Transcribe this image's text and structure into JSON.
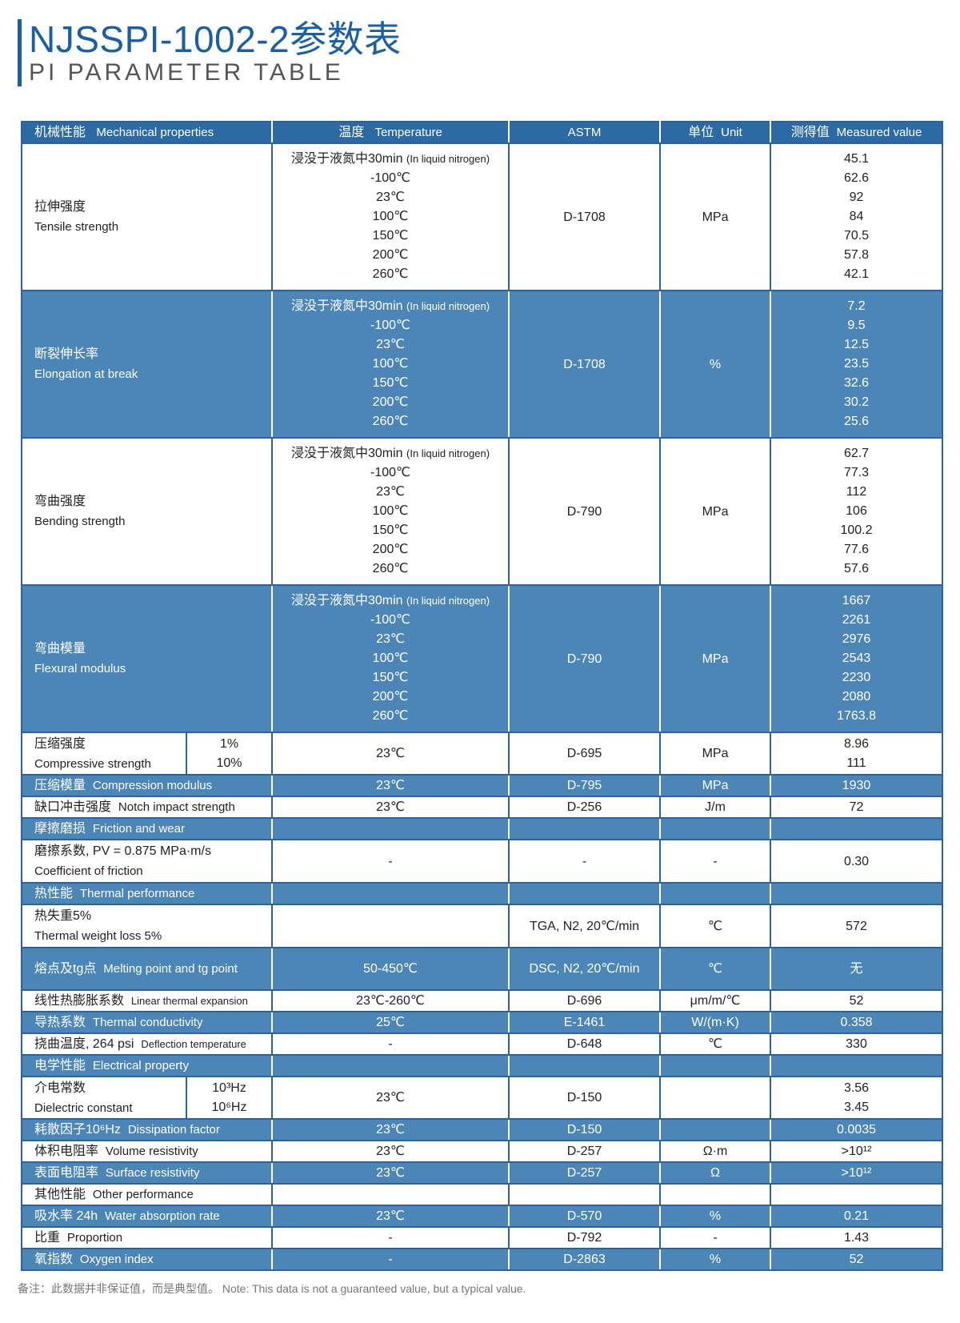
{
  "header": {
    "title": "NJSSPI-1002-2参数表",
    "subtitle": "PI PARAMETER TABLE"
  },
  "columns": [
    {
      "cn": "机械性能",
      "en": "Mechanical properties"
    },
    {
      "cn": "温度",
      "en": "Temperature"
    },
    {
      "cn": "",
      "en": "ASTM"
    },
    {
      "cn": "单位",
      "en": "Unit"
    },
    {
      "cn": "测得值",
      "en": "Measured value"
    }
  ],
  "temperatures": {
    "first_cn": "浸没于液氮中30min",
    "first_en": "(In liquid nitrogen)",
    "list": [
      "-100℃",
      "23℃",
      "100℃",
      "150℃",
      "200℃",
      "260℃"
    ]
  },
  "rows": [
    {
      "kind": "multi",
      "style": "white",
      "cn": "拉伸强度",
      "en": "Tensile strength",
      "astm": "D-1708",
      "unit": "MPa",
      "values": [
        "45.1",
        "62.6",
        "92",
        "84",
        "70.5",
        "57.8",
        "42.1"
      ]
    },
    {
      "kind": "multi",
      "style": "blue",
      "cn": "断裂伸长率",
      "en": "Elongation at break",
      "astm": "D-1708",
      "unit": "%",
      "values": [
        "7.2",
        "9.5",
        "12.5",
        "23.5",
        "32.6",
        "30.2",
        "25.6"
      ]
    },
    {
      "kind": "multi",
      "style": "white",
      "cn": "弯曲强度",
      "en": "Bending strength",
      "astm": "D-790",
      "unit": "MPa",
      "values": [
        "62.7",
        "77.3",
        "112",
        "106",
        "100.2",
        "77.6",
        "57.6"
      ]
    },
    {
      "kind": "multi",
      "style": "blue",
      "cn": "弯曲模量",
      "en": "Flexural modulus",
      "astm": "D-790",
      "unit": "MPa",
      "values": [
        "1667",
        "2261",
        "2976",
        "2543",
        "2230",
        "2080",
        "1763.8"
      ]
    },
    {
      "kind": "sub",
      "style": "white",
      "cn": "压缩强度",
      "en": "Compressive strength",
      "subs": [
        "1%",
        "10%"
      ],
      "temp": "23℃",
      "astm": "D-695",
      "unit": "MPa",
      "values": [
        "8.96",
        "111"
      ]
    },
    {
      "kind": "simple",
      "style": "blue",
      "cn": "压缩模量",
      "en": "Compression modulus",
      "temp": "23℃",
      "astm": "D-795",
      "unit": "MPa",
      "value": "1930"
    },
    {
      "kind": "simple",
      "style": "white",
      "cn": "缺口冲击强度",
      "en": "Notch impact strength",
      "temp": "23℃",
      "astm": "D-256",
      "unit": "J/m",
      "value": "72"
    },
    {
      "kind": "section",
      "style": "blue",
      "cn": "摩擦磨损",
      "en": "Friction and wear"
    },
    {
      "kind": "two",
      "style": "white",
      "cn": "磨擦系数, PV = 0.875 MPa·m/s",
      "en": "Coefficient of friction",
      "temp": "-",
      "astm": "-",
      "unit": "-",
      "value": "0.30"
    },
    {
      "kind": "section",
      "style": "blue",
      "cn": "热性能",
      "en": "Thermal performance"
    },
    {
      "kind": "two",
      "style": "white",
      "cn": "热失重5%",
      "en": "Thermal weight loss 5%",
      "temp": "",
      "astm": "TGA, N2, 20℃/min",
      "unit": "℃",
      "value": "572"
    },
    {
      "kind": "tall",
      "style": "blue",
      "cn": "熔点及tg点",
      "en": "Melting point and tg point",
      "temp": "50-450℃",
      "astm": "DSC, N2, 20℃/min",
      "unit": "℃",
      "value": "无"
    },
    {
      "kind": "simple",
      "style": "white",
      "cn": "线性热膨胀系数",
      "en": "Linear thermal expansion",
      "small": true,
      "temp": "23℃-260℃",
      "astm": "D-696",
      "unit": "μm/m/℃",
      "value": "52"
    },
    {
      "kind": "simple",
      "style": "blue",
      "cn": "导热系数",
      "en": "Thermal conductivity",
      "temp": "25℃",
      "astm": "E-1461",
      "unit": "W/(m·K)",
      "value": "0.358"
    },
    {
      "kind": "simple",
      "style": "white",
      "cn": "挠曲温度, 264 psi",
      "en": "Deflection temperature",
      "small": true,
      "temp": "-",
      "astm": "D-648",
      "unit": "℃",
      "value": "330"
    },
    {
      "kind": "section",
      "style": "blue",
      "cn": "电学性能",
      "en": "Electrical property"
    },
    {
      "kind": "sub",
      "style": "white",
      "cn": "介电常数",
      "en": "Dielectric constant",
      "subs": [
        "10³Hz",
        "10⁶Hz"
      ],
      "temp": "23℃",
      "astm": "D-150",
      "unit": "",
      "values": [
        "3.56",
        "3.45"
      ]
    },
    {
      "kind": "simple",
      "style": "blue",
      "cn": "耗散因子10⁶Hz",
      "en": "Dissipation factor",
      "temp": "23℃",
      "astm": "D-150",
      "unit": "",
      "value": "0.0035"
    },
    {
      "kind": "simple",
      "style": "white",
      "cn": "体积电阻率",
      "en": "Volume resistivity",
      "temp": "23℃",
      "astm": "D-257",
      "unit": "Ω·m",
      "value": ">10¹²"
    },
    {
      "kind": "simple",
      "style": "blue",
      "cn": "表面电阻率",
      "en": "Surface resistivity",
      "temp": "23℃",
      "astm": "D-257",
      "unit": "Ω",
      "value": ">10¹²"
    },
    {
      "kind": "section",
      "style": "white",
      "cn": "其他性能",
      "en": "Other performance"
    },
    {
      "kind": "simple",
      "style": "blue",
      "cn": "吸水率 24h",
      "en": "Water absorption rate",
      "temp": "23℃",
      "astm": "D-570",
      "unit": "%",
      "value": "0.21"
    },
    {
      "kind": "simple",
      "style": "white",
      "cn": "比重",
      "en": "Proportion",
      "temp": "-",
      "astm": "D-792",
      "unit": "-",
      "value": "1.43"
    },
    {
      "kind": "simple",
      "style": "blue",
      "cn": "氧指数",
      "en": "Oxygen index",
      "temp": "-",
      "astm": "D-2863",
      "unit": "%",
      "value": "52"
    }
  ],
  "footnote": "备注：此数据并非保证值，而是典型值。 Note: This data is not a guaranteed value, but a typical value.",
  "colors": {
    "title": "#1a5fa6",
    "header_row": "#2c6aa3",
    "blue_row": "#4b86b7",
    "border": "#2a62a2"
  }
}
